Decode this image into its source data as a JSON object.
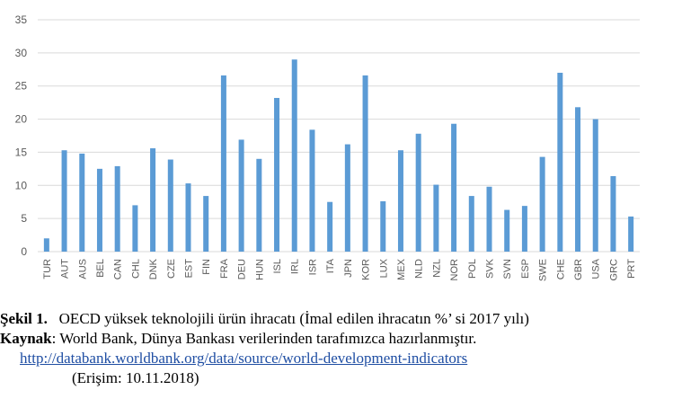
{
  "chart_data": {
    "type": "bar",
    "categories": [
      "TUR",
      "AUT",
      "AUS",
      "BEL",
      "CAN",
      "CHL",
      "DNK",
      "CZE",
      "EST",
      "FIN",
      "FRA",
      "DEU",
      "HUN",
      "ISL",
      "IRL",
      "ISR",
      "ITA",
      "JPN",
      "KOR",
      "LUX",
      "MEX",
      "NLD",
      "NZL",
      "NOR",
      "POL",
      "SVK",
      "SVN",
      "ESP",
      "SWE",
      "CHE",
      "GBR",
      "USA",
      "GRC",
      "PRT"
    ],
    "values": [
      2.0,
      15.3,
      14.8,
      12.5,
      12.9,
      7.0,
      15.6,
      13.9,
      10.3,
      8.4,
      26.6,
      16.9,
      14.0,
      23.2,
      29.0,
      18.4,
      7.5,
      16.2,
      26.6,
      7.6,
      15.3,
      17.8,
      10.1,
      19.3,
      8.4,
      9.8,
      6.3,
      6.9,
      14.3,
      27.0,
      21.8,
      20.0,
      11.4,
      5.3
    ],
    "yticks": [
      "0",
      "5",
      "10",
      "15",
      "20",
      "25",
      "30",
      "35"
    ],
    "ylim": [
      0,
      35
    ],
    "grid": true,
    "bar_color": "#5b9bd5",
    "title": "",
    "xlabel": "",
    "ylabel": ""
  },
  "caption": {
    "figure_label": "Şekil 1.",
    "figure_text": "OECD yüksek teknolojili ürün ihracatı (İmal edilen ihracatın %’ si 2017 yılı)",
    "source_label": "Kaynak",
    "source_text": ": World Bank, Dünya Bankası verilerinden tarafımızca hazırlanmıştır.",
    "link_text": "http://databank.worldbank.org/data/source/world-development-indicators",
    "access_text": "(Erişim: 10.11.2018)"
  }
}
